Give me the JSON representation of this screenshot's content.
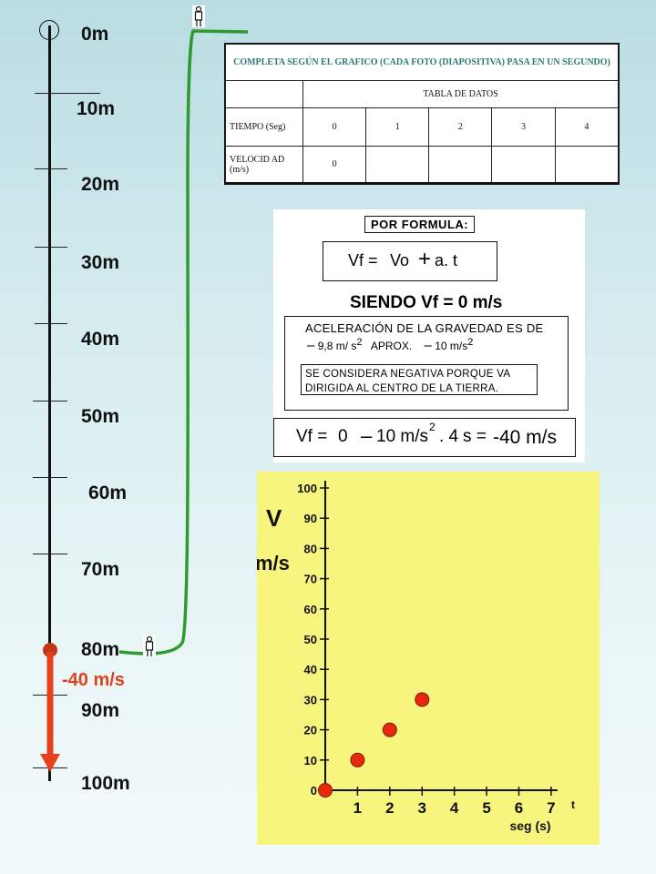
{
  "heights": [
    "0m",
    "10m",
    "20m",
    "30m",
    "40m",
    "50m",
    "60m",
    "70m",
    "80m",
    "90m",
    "100m"
  ],
  "velocity_label": "-40 m/s",
  "table": {
    "title": "COMPLETA SEGÚN EL GRAFICO  (CADA FOTO (DIAPOSITIVA) PASA EN UN SEGUNDO)",
    "subtitle": "TABLA DE DATOS",
    "time_label": "TIEMPO (Seg)",
    "times": [
      "0",
      "1",
      "2",
      "3",
      "4"
    ],
    "vel_label": "VELOCID AD (m/s)",
    "velocities": [
      "0",
      "",
      "",
      "",
      ""
    ]
  },
  "formula": {
    "title": "POR FORMULA:",
    "f1_a": "Vf =",
    "f1_b": "Vo",
    "f1_c": "+",
    "f1_d": "a. t",
    "siendo": "SIENDO Vf = 0 m/s",
    "acc_title": "ACELERACIÓN DE LA GRAVEDAD ES DE",
    "acc_dash1": "–",
    "acc_val1": "9,8 m/ s",
    "acc_sup1": "2",
    "acc_approx": "APROX.",
    "acc_dash2": "–",
    "acc_val2": "10 m/s",
    "acc_sup2": "2",
    "neg_note": "SE CONSIDERA NEGATIVA PORQUE VA DIRIGIDA AL CENTRO DE LA TIERRA.",
    "f2_a": "Vf =",
    "f2_b": "0",
    "f2_c": "–",
    "f2_d": "10 m/s",
    "f2_sup": "2",
    "f2_e": ". 4",
    "f2_f": "s =",
    "f2_g": "-40 m/s"
  },
  "chart_data": {
    "type": "scatter",
    "ylabel_line1": "V",
    "ylabel_line2": "m/s",
    "xlabel": "seg (s)",
    "x_axis_letter": "t",
    "yticks": [
      "0",
      "10",
      "20",
      "30",
      "40",
      "50",
      "60",
      "70",
      "80",
      "90",
      "100"
    ],
    "xticks": [
      "1",
      "2",
      "3",
      "4",
      "5",
      "6",
      "7"
    ],
    "xlim": [
      0,
      7
    ],
    "ylim": [
      0,
      100
    ],
    "points": [
      {
        "x": 0,
        "y": 0
      },
      {
        "x": 1,
        "y": 10
      },
      {
        "x": 2,
        "y": 20
      },
      {
        "x": 3,
        "y": 30
      }
    ],
    "point_color": "#e8280c"
  }
}
